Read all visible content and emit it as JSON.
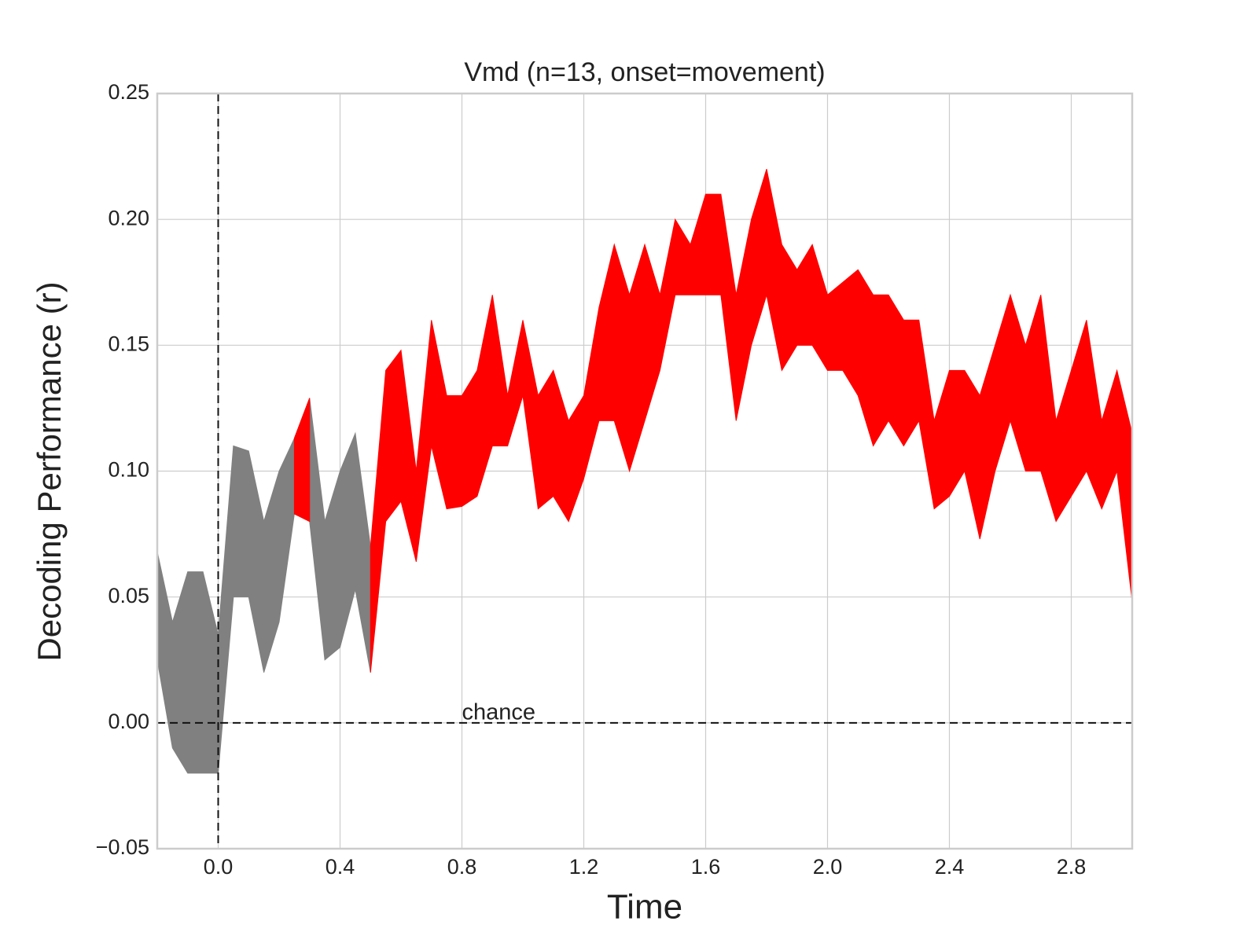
{
  "chart_data": {
    "type": "band",
    "title": "Vmd (n=13, onset=movement)",
    "x_label": "Time",
    "y_label": "Decoding Performance (r)",
    "annotation": "chance",
    "hline": 0,
    "vline": 0,
    "grid": true,
    "xlim": [
      -0.2,
      3.0
    ],
    "ylim": [
      -0.05,
      0.25
    ],
    "xticks": [
      {
        "value": 0,
        "label": "0.0"
      },
      0.4,
      0.8,
      1.2,
      1.6,
      {
        "value": 2,
        "label": "2.0"
      },
      2.4,
      2.8
    ],
    "yticks": [
      {
        "value": -0.05,
        "label": "−0.05"
      },
      {
        "value": 0,
        "label": "0.00"
      },
      0.05,
      {
        "value": 0.1,
        "label": "0.10"
      },
      0.15,
      {
        "value": 0.2,
        "label": "0.20"
      },
      0.25
    ],
    "x": [
      -0.2,
      -0.15,
      -0.1,
      -0.05,
      0,
      0.05,
      0.1,
      0.15,
      0.2,
      0.25,
      0.3,
      0.35,
      0.4,
      0.45,
      0.5,
      0.55,
      0.6,
      0.65,
      0.7,
      0.75,
      0.8,
      0.85,
      0.9,
      0.95,
      1.0,
      1.05,
      1.1,
      1.15,
      1.2,
      1.25,
      1.3,
      1.35,
      1.4,
      1.45,
      1.5,
      1.55,
      1.6,
      1.65,
      1.7,
      1.75,
      1.8,
      1.85,
      1.9,
      1.95,
      2.0,
      2.05,
      2.1,
      2.15,
      2.2,
      2.25,
      2.3,
      2.35,
      2.4,
      2.45,
      2.5,
      2.55,
      2.6,
      2.65,
      2.7,
      2.75,
      2.8,
      2.85,
      2.9,
      2.95,
      3.0
    ],
    "bands": [
      {
        "color": "#808080",
        "upper": [
          0.068,
          0.04,
          0.06,
          0.06,
          0.035,
          0.11,
          0.108,
          0.08,
          0.1,
          0.113,
          0.129,
          0.08,
          0.1,
          0.115,
          0.07,
          null,
          null,
          null,
          null,
          null,
          null,
          null,
          null,
          null,
          null,
          null,
          null,
          null,
          null,
          null,
          null,
          null,
          null,
          null,
          null,
          null,
          null,
          null,
          null,
          null,
          null,
          null,
          null,
          null,
          null,
          null,
          null,
          null,
          null,
          null,
          null,
          null,
          null,
          null,
          null,
          null,
          null,
          null,
          null,
          null,
          null,
          null,
          null,
          null,
          null
        ],
        "lower": [
          0.025,
          -0.01,
          -0.02,
          -0.02,
          -0.02,
          0.05,
          0.05,
          0.02,
          0.04,
          0.083,
          0.08,
          0.025,
          0.03,
          0.053,
          0.02,
          null,
          null,
          null,
          null,
          null,
          null,
          null,
          null,
          null,
          null,
          null,
          null,
          null,
          null,
          null,
          null,
          null,
          null,
          null,
          null,
          null,
          null,
          null,
          null,
          null,
          null,
          null,
          null,
          null,
          null,
          null,
          null,
          null,
          null,
          null,
          null,
          null,
          null,
          null,
          null,
          null,
          null,
          null,
          null,
          null,
          null,
          null,
          null,
          null,
          null
        ]
      },
      {
        "color": "#ff0000",
        "upper": [
          null,
          null,
          null,
          null,
          null,
          null,
          null,
          null,
          null,
          0.113,
          0.129,
          null,
          null,
          null,
          0.07,
          0.14,
          0.148,
          0.1,
          0.16,
          0.13,
          0.13,
          0.14,
          0.17,
          0.13,
          0.16,
          0.13,
          0.14,
          0.12,
          0.13,
          0.165,
          0.19,
          0.17,
          0.19,
          0.17,
          0.2,
          0.19,
          0.21,
          0.21,
          0.17,
          0.2,
          0.22,
          0.19,
          0.18,
          0.19,
          0.17,
          0.175,
          0.18,
          0.17,
          0.17,
          0.16,
          0.16,
          0.12,
          0.14,
          0.14,
          0.13,
          0.15,
          0.17,
          0.15,
          0.17,
          0.12,
          0.14,
          0.16,
          0.12,
          0.14,
          0.115
        ],
        "lower": [
          null,
          null,
          null,
          null,
          null,
          null,
          null,
          null,
          null,
          0.083,
          0.08,
          null,
          null,
          null,
          0.02,
          0.08,
          0.088,
          0.064,
          0.11,
          0.085,
          0.086,
          0.09,
          0.11,
          0.11,
          0.13,
          0.085,
          0.09,
          0.08,
          0.097,
          0.12,
          0.12,
          0.1,
          0.12,
          0.14,
          0.17,
          0.17,
          0.17,
          0.17,
          0.12,
          0.15,
          0.17,
          0.14,
          0.15,
          0.15,
          0.14,
          0.14,
          0.13,
          0.11,
          0.12,
          0.11,
          0.12,
          0.085,
          0.09,
          0.1,
          0.073,
          0.1,
          0.12,
          0.1,
          0.1,
          0.08,
          0.09,
          0.1,
          0.085,
          0.1,
          0.048
        ]
      }
    ]
  }
}
